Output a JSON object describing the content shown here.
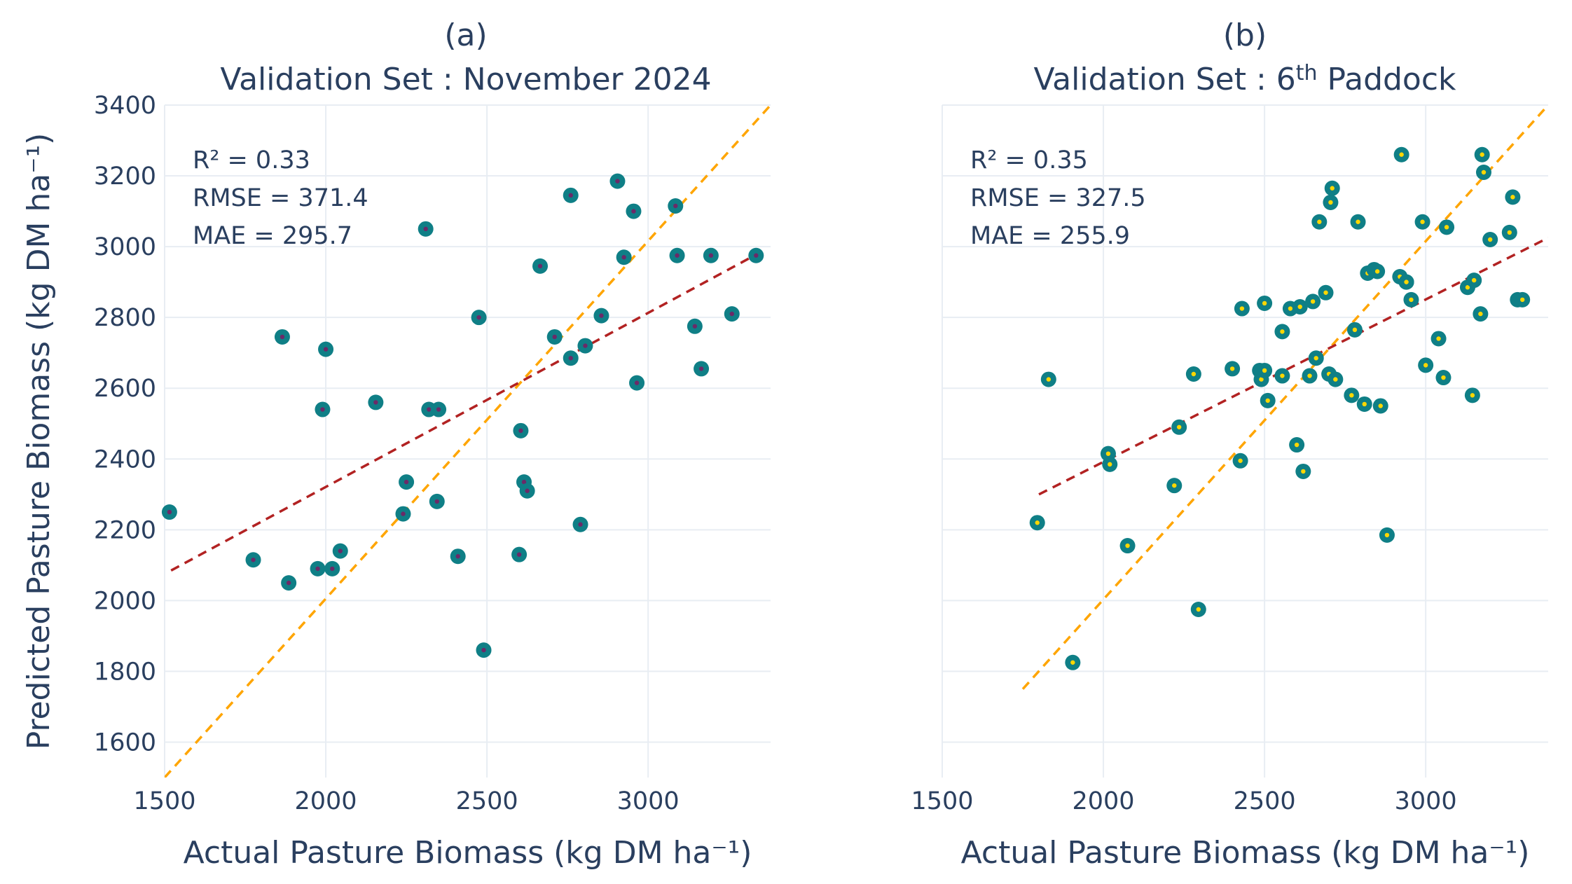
{
  "chart_data": [
    {
      "type": "scatter",
      "panel_label": "(a)",
      "title": "Validation Set : November 2024",
      "xlabel": "Actual Pasture Biomass (kg DM ha⁻¹)",
      "ylabel": "Predicted Pasture Biomass (kg DM ha⁻¹)",
      "xlim": [
        1500,
        3380
      ],
      "ylim": [
        1500,
        3400
      ],
      "xticks": [
        1500,
        2000,
        2500,
        3000
      ],
      "yticks": [
        1600,
        1800,
        2000,
        2200,
        2400,
        2600,
        2800,
        3000,
        3200,
        3400
      ],
      "grid": true,
      "stats": [
        "R² = 0.33",
        "RMSE = 371.4",
        "MAE = 295.7"
      ],
      "marker": {
        "fill": "#0f7f86",
        "center": "#6b2a68"
      },
      "identity_line": {
        "x": [
          1500,
          3380
        ],
        "y": [
          1500,
          3400
        ],
        "color": "#ffa500"
      },
      "fit_line": {
        "x": [
          1520,
          3330
        ],
        "y": [
          2085,
          2975
        ],
        "color": "#b22222"
      },
      "points": {
        "x": [
          1515,
          1775,
          1865,
          1885,
          1975,
          1990,
          2000,
          2020,
          2045,
          2155,
          2240,
          2250,
          2310,
          2320,
          2345,
          2350,
          2410,
          2475,
          2490,
          2600,
          2605,
          2615,
          2625,
          2665,
          2710,
          2760,
          2760,
          2790,
          2805,
          2855,
          2905,
          2925,
          2955,
          2965,
          3085,
          3090,
          3145,
          3165,
          3195,
          3260,
          3335
        ],
        "y": [
          2250,
          2115,
          2745,
          2050,
          2090,
          2540,
          2710,
          2090,
          2140,
          2560,
          2245,
          2335,
          3050,
          2540,
          2280,
          2540,
          2125,
          2800,
          1860,
          2130,
          2480,
          2335,
          2310,
          2945,
          2745,
          2685,
          3145,
          2215,
          2720,
          2805,
          3185,
          2970,
          3100,
          2615,
          3115,
          2975,
          2775,
          2655,
          2975,
          2810,
          2975
        ]
      }
    },
    {
      "type": "scatter",
      "panel_label": "(b)",
      "title": "Validation Set : 6",
      "title_superscript": "th",
      "title_suffix": " Paddock",
      "xlabel": "Actual Pasture Biomass (kg DM ha⁻¹)",
      "ylabel": "",
      "xlim": [
        1500,
        3380
      ],
      "ylim": [
        1500,
        3400
      ],
      "xticks": [
        1500,
        2000,
        2500,
        3000
      ],
      "yticks": [
        1600,
        1800,
        2000,
        2200,
        2400,
        2600,
        2800,
        3000,
        3200,
        3400
      ],
      "grid": true,
      "stats": [
        "R² = 0.35",
        "RMSE = 327.5",
        "MAE = 255.9"
      ],
      "marker": {
        "fill": "#0f7f86",
        "center": "#ffd700"
      },
      "identity_line": {
        "x": [
          1750,
          3380
        ],
        "y": [
          1750,
          3400
        ],
        "color": "#ffa500"
      },
      "fit_line": {
        "x": [
          1800,
          3380
        ],
        "y": [
          2300,
          3025
        ],
        "color": "#b22222"
      },
      "points": {
        "x": [
          1795,
          1830,
          1905,
          2015,
          2020,
          2075,
          2220,
          2235,
          2280,
          2295,
          2400,
          2425,
          2430,
          2485,
          2490,
          2500,
          2500,
          2510,
          2555,
          2555,
          2580,
          2600,
          2610,
          2620,
          2640,
          2650,
          2660,
          2670,
          2690,
          2700,
          2705,
          2710,
          2720,
          2770,
          2780,
          2790,
          2810,
          2820,
          2840,
          2850,
          2860,
          2880,
          2920,
          2925,
          2940,
          2940,
          2955,
          2990,
          3000,
          3040,
          3055,
          3065,
          3130,
          3145,
          3150,
          3170,
          3175,
          3180,
          3200,
          3260,
          3270,
          3285,
          3300
        ],
        "y": [
          2220,
          2625,
          1825,
          2415,
          2385,
          2155,
          2325,
          2490,
          2640,
          1975,
          2655,
          2395,
          2825,
          2650,
          2625,
          2840,
          2650,
          2565,
          2760,
          2635,
          2825,
          2440,
          2830,
          2365,
          2635,
          2845,
          2685,
          3070,
          2870,
          2640,
          3125,
          3165,
          2625,
          2580,
          2765,
          3070,
          2555,
          2925,
          2935,
          2930,
          2550,
          2185,
          2915,
          3260,
          2900,
          2900,
          2850,
          3070,
          2665,
          2740,
          2630,
          3055,
          2885,
          2580,
          2905,
          2810,
          3260,
          3210,
          3020,
          3040,
          3140,
          2850,
          2850
        ]
      }
    }
  ]
}
